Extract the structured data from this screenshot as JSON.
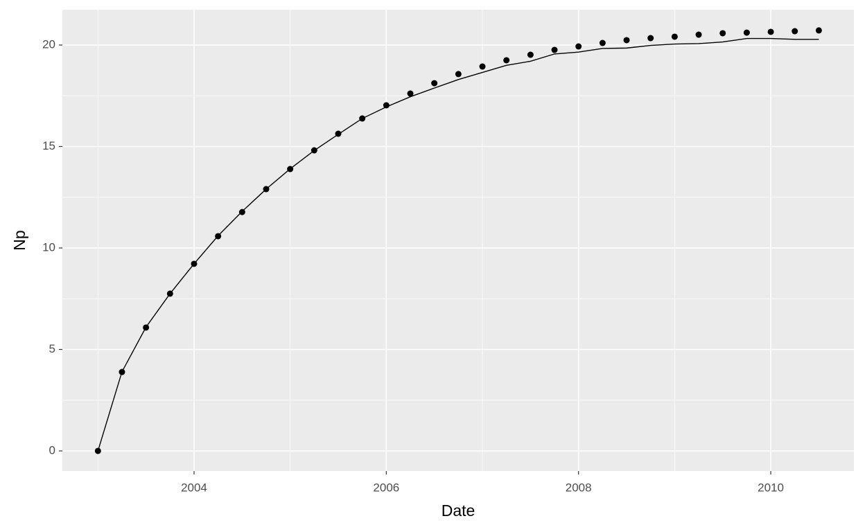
{
  "chart_data": {
    "type": "line",
    "x_label": "Date",
    "y_label": "Np",
    "x": [
      2003,
      2003.25,
      2003.5,
      2003.75,
      2004,
      2004.25,
      2004.5,
      2004.75,
      2005,
      2005.25,
      2005.5,
      2005.75,
      2006,
      2006.25,
      2006.5,
      2006.75,
      2007,
      2007.25,
      2007.5,
      2007.75,
      2008,
      2008.25,
      2008.5,
      2008.75,
      2009,
      2009.25,
      2009.5,
      2009.75,
      2010,
      2010.25,
      2010.5
    ],
    "series": [
      {
        "type": "scatter",
        "color": "#000000",
        "values": [
          0,
          3.89,
          6.08,
          7.75,
          9.22,
          10.58,
          11.77,
          12.9,
          13.89,
          14.81,
          15.63,
          16.38,
          17.03,
          17.61,
          18.12,
          18.57,
          18.94,
          19.25,
          19.52,
          19.76,
          19.93,
          20.1,
          20.24,
          20.34,
          20.41,
          20.51,
          20.58,
          20.61,
          20.65,
          20.68,
          20.72
        ]
      },
      {
        "type": "line",
        "color": "#000000",
        "values": [
          0,
          3.9,
          6.1,
          7.75,
          9.22,
          10.6,
          11.8,
          12.9,
          13.9,
          14.8,
          15.6,
          16.38,
          16.95,
          17.45,
          17.88,
          18.3,
          18.65,
          19.0,
          19.2,
          19.56,
          19.65,
          19.83,
          19.85,
          19.98,
          20.05,
          20.07,
          20.15,
          20.32,
          20.32,
          20.28,
          20.28
        ]
      }
    ],
    "xlim": [
      2002.63,
      2010.865
    ],
    "ylim": [
      -0.99,
      21.74
    ],
    "xticks": [
      2004,
      2006,
      2008,
      2010
    ],
    "yticks": [
      0,
      5,
      10,
      15,
      20
    ],
    "grid": true,
    "panel_color": "#ebebeb"
  }
}
